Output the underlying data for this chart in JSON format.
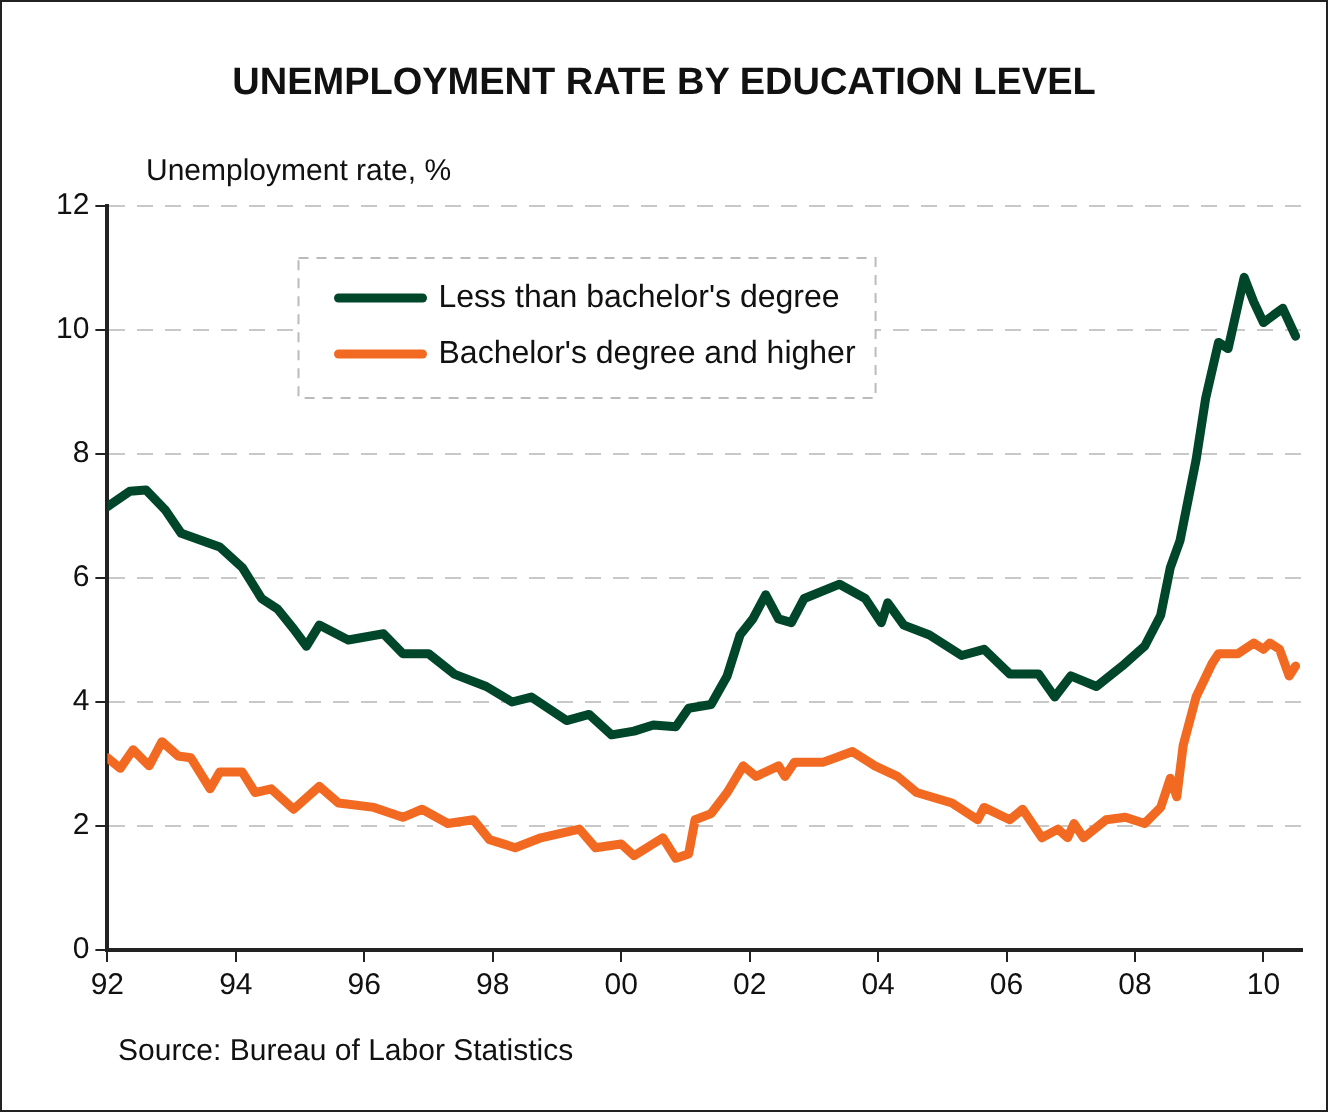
{
  "chart_data": {
    "type": "line",
    "title": "UNEMPLOYMENT RATE BY EDUCATION LEVEL",
    "ylabel": "Unemployment rate, %",
    "annotations": [
      "Source: Bureau of Labor Statistics"
    ],
    "xlim": [
      1992,
      2010.6
    ],
    "xticks": [
      {
        "value": 1992,
        "label": "92"
      },
      {
        "value": 1994,
        "label": "94"
      },
      {
        "value": 1996,
        "label": "96"
      },
      {
        "value": 1998,
        "label": "98"
      },
      {
        "value": 2000,
        "label": "00"
      },
      {
        "value": 2002,
        "label": "02"
      },
      {
        "value": 2004,
        "label": "04"
      },
      {
        "value": 2006,
        "label": "06"
      },
      {
        "value": 2008,
        "label": "08"
      },
      {
        "value": 2010,
        "label": "10"
      }
    ],
    "ylim": [
      0,
      12
    ],
    "yticks": [
      0,
      2,
      4,
      6,
      8,
      10,
      12
    ],
    "grid": "y",
    "legend": "top",
    "marker": "none",
    "line_style": "solid",
    "series": [
      {
        "name": "Less than bachelor's degree",
        "color": "#00462a",
        "x": [
          1992.0,
          1992.35,
          1992.6,
          1992.9,
          1993.15,
          1993.75,
          1994.1,
          1994.4,
          1994.65,
          1994.9,
          1995.1,
          1995.3,
          1995.75,
          1996.3,
          1996.6,
          1997.0,
          1997.4,
          1997.9,
          1998.3,
          1998.6,
          1999.15,
          1999.5,
          1999.85,
          2000.2,
          2000.5,
          2000.85,
          2001.05,
          2001.4,
          2001.65,
          2001.85,
          2002.05,
          2002.25,
          2002.45,
          2002.65,
          2002.85,
          2003.4,
          2003.8,
          2004.05,
          2004.15,
          2004.4,
          2004.8,
          2005.3,
          2005.65,
          2006.05,
          2006.5,
          2006.75,
          2007.0,
          2007.4,
          2007.8,
          2008.15,
          2008.4,
          2008.55,
          2008.7,
          2008.95,
          2009.1,
          2009.3,
          2009.45,
          2009.7,
          2009.85,
          2010.0,
          2010.3,
          2010.5
        ],
        "values": [
          7.15,
          7.4,
          7.42,
          7.1,
          6.72,
          6.5,
          6.17,
          5.67,
          5.5,
          5.18,
          4.9,
          5.24,
          5.0,
          5.1,
          4.78,
          4.78,
          4.45,
          4.25,
          4.0,
          4.08,
          3.7,
          3.8,
          3.47,
          3.53,
          3.63,
          3.6,
          3.9,
          3.96,
          4.42,
          5.08,
          5.34,
          5.73,
          5.34,
          5.28,
          5.67,
          5.9,
          5.67,
          5.28,
          5.6,
          5.24,
          5.08,
          4.75,
          4.85,
          4.45,
          4.45,
          4.08,
          4.42,
          4.25,
          4.58,
          4.9,
          5.4,
          6.17,
          6.6,
          7.9,
          8.9,
          9.8,
          9.7,
          10.85,
          10.45,
          10.12,
          10.35,
          9.9
        ]
      },
      {
        "name": "Bachelor's degree and higher",
        "color": "#f26a21",
        "x": [
          1992.0,
          1992.2,
          1992.4,
          1992.65,
          1992.85,
          1993.1,
          1993.3,
          1993.6,
          1993.75,
          1994.1,
          1994.3,
          1994.55,
          1994.9,
          1995.3,
          1995.6,
          1996.15,
          1996.6,
          1996.9,
          1997.3,
          1997.7,
          1997.95,
          1998.35,
          1998.75,
          1999.35,
          1999.6,
          2000.0,
          2000.2,
          2000.65,
          2000.85,
          2001.05,
          2001.15,
          2001.4,
          2001.65,
          2001.9,
          2002.1,
          2002.45,
          2002.55,
          2002.7,
          2003.15,
          2003.6,
          2003.95,
          2004.3,
          2004.6,
          2005.15,
          2005.55,
          2005.65,
          2006.05,
          2006.25,
          2006.55,
          2006.8,
          2006.95,
          2007.05,
          2007.2,
          2007.55,
          2007.85,
          2008.15,
          2008.4,
          2008.55,
          2008.65,
          2008.75,
          2008.95,
          2009.2,
          2009.3,
          2009.6,
          2009.85,
          2010.0,
          2010.1,
          2010.25,
          2010.4,
          2010.5
        ],
        "values": [
          3.1,
          2.93,
          3.23,
          2.97,
          3.36,
          3.13,
          3.1,
          2.6,
          2.87,
          2.87,
          2.54,
          2.6,
          2.27,
          2.64,
          2.37,
          2.3,
          2.14,
          2.27,
          2.04,
          2.1,
          1.78,
          1.65,
          1.81,
          1.95,
          1.65,
          1.71,
          1.52,
          1.81,
          1.48,
          1.55,
          2.1,
          2.2,
          2.54,
          2.97,
          2.8,
          2.97,
          2.8,
          3.03,
          3.03,
          3.2,
          2.97,
          2.8,
          2.54,
          2.37,
          2.1,
          2.3,
          2.1,
          2.27,
          1.81,
          1.95,
          1.81,
          2.04,
          1.81,
          2.1,
          2.14,
          2.04,
          2.3,
          2.77,
          2.47,
          3.3,
          4.08,
          4.62,
          4.78,
          4.78,
          4.95,
          4.85,
          4.95,
          4.85,
          4.42,
          4.58
        ]
      }
    ]
  }
}
